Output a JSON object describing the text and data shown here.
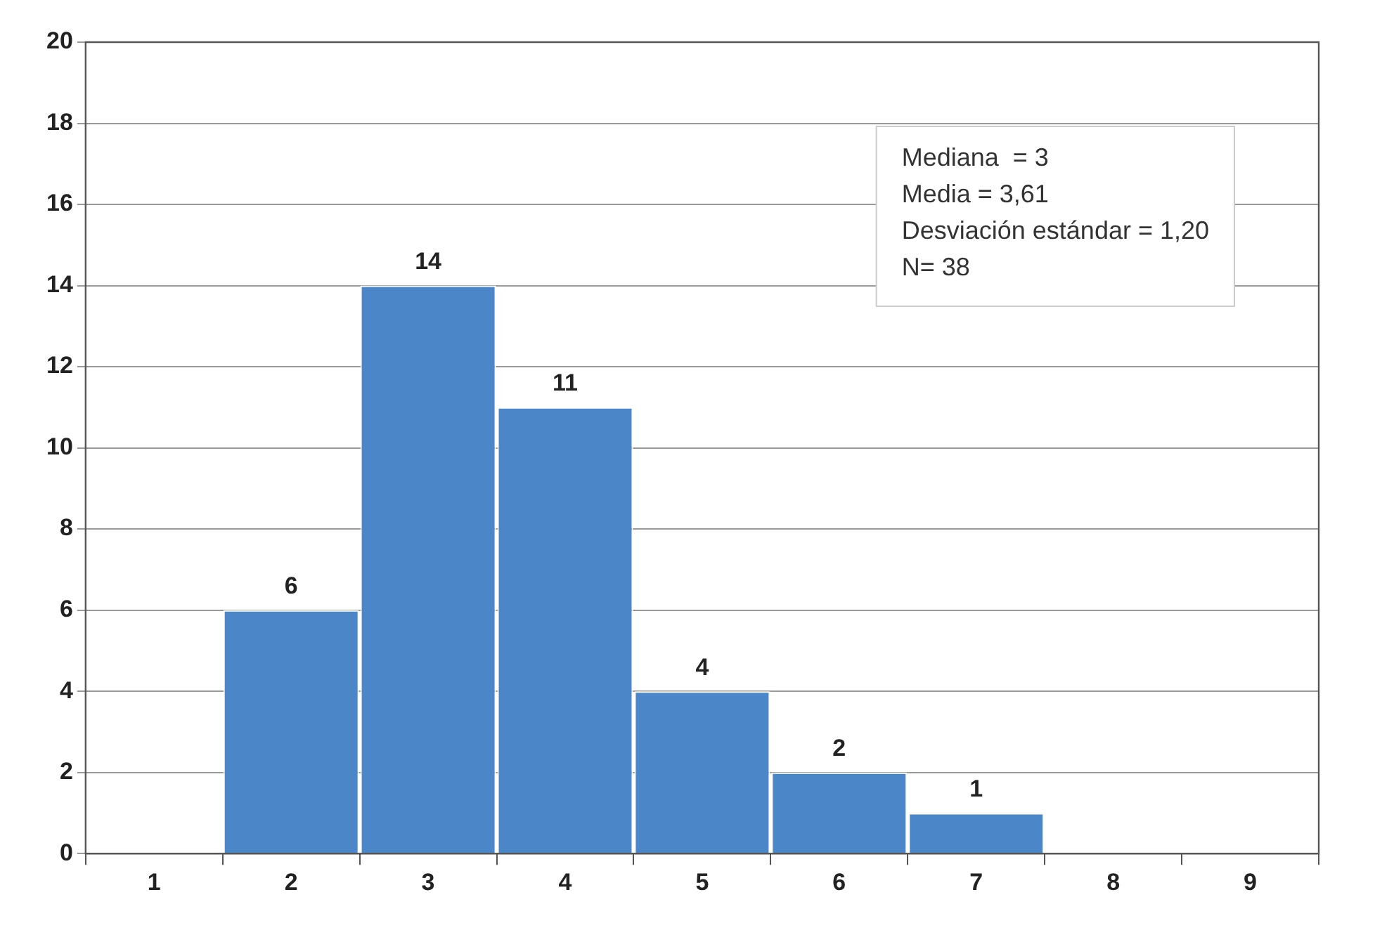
{
  "chart_data": {
    "type": "bar",
    "categories": [
      "1",
      "2",
      "3",
      "4",
      "5",
      "6",
      "7",
      "8",
      "9"
    ],
    "values": [
      0,
      6,
      14,
      11,
      4,
      2,
      1,
      0,
      0
    ],
    "value_labels": [
      null,
      "6",
      "14",
      "11",
      "4",
      "2",
      "1",
      null,
      null
    ],
    "color": "#4a86c8",
    "ylim": [
      0,
      20
    ],
    "yticks": [
      0,
      2,
      4,
      6,
      8,
      10,
      12,
      14,
      16,
      18,
      20
    ],
    "grid": "y",
    "legend": false,
    "annotations": [
      "Mediana  = 3",
      "Media = 3,61",
      "Desviación estándar = 1,20",
      "N= 38"
    ]
  }
}
